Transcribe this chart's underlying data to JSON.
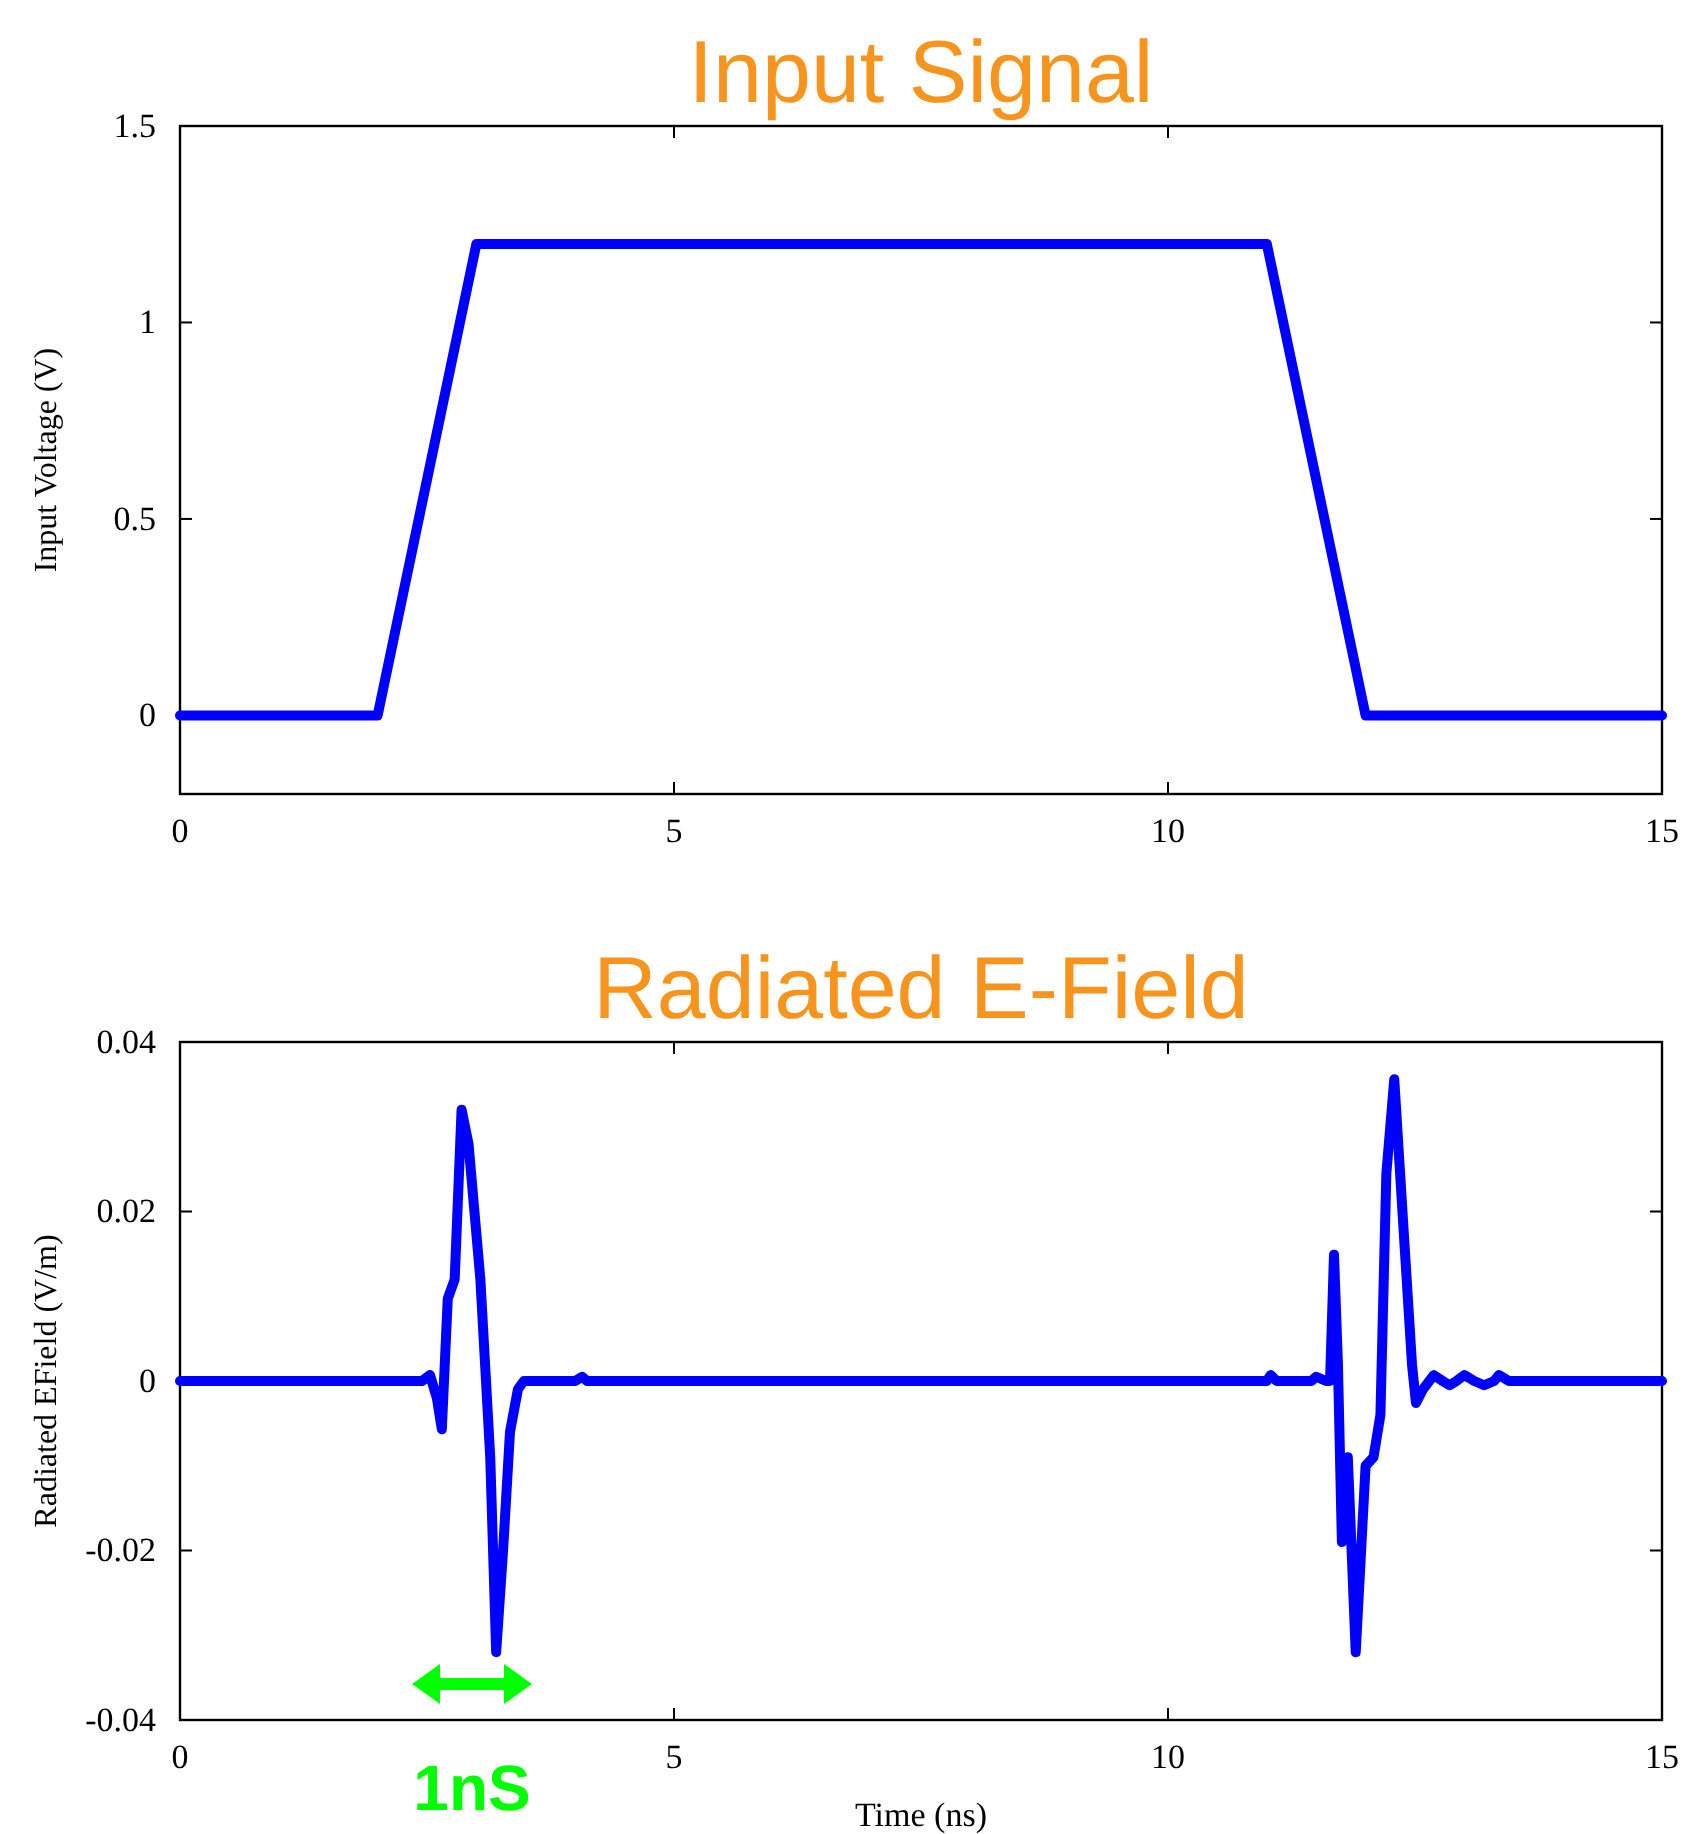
{
  "chart_data": [
    {
      "type": "line",
      "title": "Input Signal",
      "ylabel": "Input Voltage (V)",
      "xlim": [
        0,
        15
      ],
      "xticks": [
        0,
        5,
        10,
        15
      ],
      "ylim": [
        -0.2,
        1.5
      ],
      "yticks": [
        0,
        0.5,
        1,
        1.5
      ],
      "grid": false,
      "line_style": "solid",
      "marker": "none",
      "series": [
        {
          "color": "#0000ff",
          "x": [
            0,
            2,
            3,
            11,
            12,
            15
          ],
          "values": [
            0,
            0,
            1.2,
            1.2,
            0,
            0
          ]
        }
      ]
    },
    {
      "type": "line",
      "title": "Radiated E-Field",
      "xlabel": "Time (ns)",
      "ylabel": "Radiated EField (V/m)",
      "xlim": [
        0,
        15
      ],
      "xticks": [
        0,
        5,
        10,
        15
      ],
      "ylim": [
        -0.04,
        0.04
      ],
      "yticks": [
        0,
        0.02,
        0.04,
        -0.02,
        -0.04
      ],
      "grid": false,
      "line_style": "solid",
      "marker": "none",
      "annotations": [
        "1nS"
      ],
      "series": [
        {
          "color": "#0000ff",
          "x": [
            0,
            2.45,
            2.53,
            2.6,
            2.65,
            2.68,
            2.71,
            2.78,
            2.85,
            2.92,
            3.04,
            3.14,
            3.2,
            3.27,
            3.34,
            3.42,
            3.48,
            4.0,
            4.07,
            4.12,
            11.0,
            11.04,
            11.1,
            11.45,
            11.5,
            11.6,
            11.64,
            11.68,
            11.72,
            11.76,
            11.82,
            11.9,
            12.0,
            12.08,
            12.15,
            12.21,
            12.29,
            12.39,
            12.47,
            12.51,
            12.58,
            12.69,
            12.78,
            12.85,
            12.92,
            13.0,
            13.1,
            13.2,
            13.3,
            13.35,
            13.45,
            15
          ],
          "values": [
            0,
            0,
            0.0007,
            -0.002,
            -0.0057,
            0.002,
            0.0097,
            0.012,
            0.032,
            0.028,
            0.012,
            -0.009,
            -0.032,
            -0.02,
            -0.006,
            -0.001,
            0,
            0,
            0.0005,
            0,
            0,
            0.0007,
            0,
            0,
            0.0005,
            0,
            0,
            0.0149,
            0.002,
            -0.019,
            -0.009,
            -0.032,
            -0.01,
            -0.009,
            -0.004,
            0.0245,
            0.0356,
            0.0168,
            0.0019,
            -0.0026,
            -0.001,
            0.0007,
            0,
            -0.0005,
            0,
            0.0007,
            0,
            -0.0005,
            0,
            0.0007,
            0,
            0
          ]
        }
      ]
    }
  ]
}
